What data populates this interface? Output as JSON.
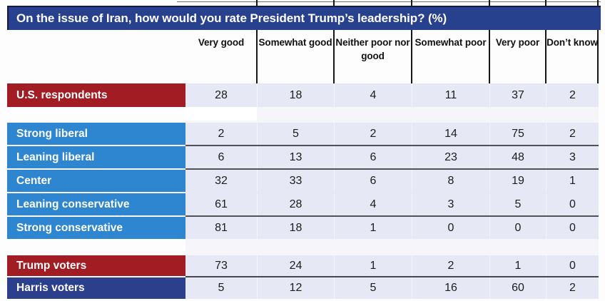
{
  "chart_data": {
    "type": "table",
    "title": "On the issue of Iran, how would you rate President Trump’s leadership? (%)",
    "unit": "%",
    "columns": [
      "Very good",
      "Somewhat good",
      "Neither poor nor good",
      "Somewhat poor",
      "Very poor",
      "Don’t know"
    ],
    "rows": [
      {
        "label": "U.S. respondents",
        "group": "overall",
        "values": [
          28,
          18,
          4,
          11,
          37,
          2
        ]
      },
      {
        "label": "Strong liberal",
        "group": "ideology",
        "values": [
          2,
          5,
          2,
          14,
          75,
          2
        ]
      },
      {
        "label": "Leaning liberal",
        "group": "ideology",
        "values": [
          6,
          13,
          6,
          23,
          48,
          3
        ]
      },
      {
        "label": "Center",
        "group": "ideology",
        "values": [
          32,
          33,
          6,
          8,
          19,
          1
        ]
      },
      {
        "label": "Leaning conservative",
        "group": "ideology",
        "values": [
          61,
          28,
          4,
          3,
          5,
          0
        ]
      },
      {
        "label": "Strong conservative",
        "group": "ideology",
        "values": [
          81,
          18,
          1,
          0,
          0,
          0
        ]
      },
      {
        "label": "Trump voters",
        "group": "2024-vote",
        "values": [
          73,
          24,
          1,
          2,
          1,
          0
        ]
      },
      {
        "label": "Harris voters",
        "group": "2024-vote",
        "values": [
          5,
          12,
          5,
          16,
          60,
          2
        ]
      }
    ],
    "layout": {
      "legend": false,
      "grid": "partial-row-dividers",
      "header_position": "top"
    }
  },
  "colors": {
    "title_bar_bg": "#27418f",
    "overall_row_bg": "#a11d23",
    "ideology_row_bg": "#2e86d0",
    "trump_row_bg": "#a11d23",
    "harris_row_bg": "#2c3f8c",
    "data_cell_bg": "#e7e8f6",
    "divider_line": "#515257",
    "header_divider": "#161616",
    "value_text": "#1c1c1c"
  }
}
